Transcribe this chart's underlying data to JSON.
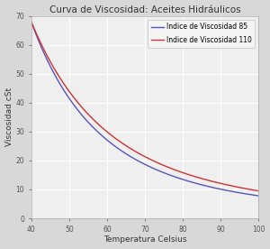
{
  "title": "Curva de Viscosidad: Aceites Hidráulicos",
  "xlabel": "Temperatura Celsius",
  "ylabel": "Viscosidad cSt",
  "xlim": [
    40,
    100
  ],
  "ylim": [
    0,
    70
  ],
  "xticks": [
    40,
    50,
    60,
    70,
    80,
    90,
    100
  ],
  "yticks": [
    0,
    10,
    20,
    30,
    40,
    50,
    60,
    70
  ],
  "line_iv85": {
    "label": "Indice de Viscosidad 85",
    "color": "#5555bb",
    "lw": 1.0,
    "v40": 68.0,
    "v100": 7.8
  },
  "line_iv110": {
    "label": "Indice de Viscosidad 110",
    "color": "#cc3333",
    "lw": 1.0,
    "v40": 68.0,
    "v100": 9.5
  },
  "background_color": "#d8d8d8",
  "plot_bg_color": "#efefef",
  "grid_color": "#ffffff",
  "title_fontsize": 7.5,
  "label_fontsize": 6.5,
  "tick_fontsize": 5.5,
  "legend_fontsize": 5.5
}
